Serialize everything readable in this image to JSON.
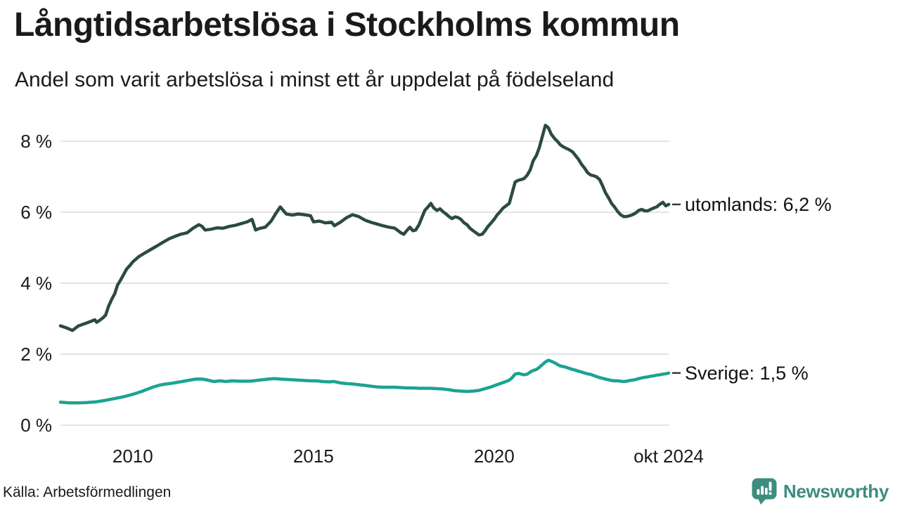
{
  "header": {
    "title": "Långtidsarbetslösa i Stockholms kommun",
    "subtitle": "Andel som varit arbetslösa i minst ett år uppdelat på födelseland"
  },
  "footer": {
    "source": "Källa: Arbetsförmedlingen",
    "brand": "Newsworthy"
  },
  "icons": {
    "brand_logo": "bar-chart-speech-bubble-with-exclamation-icon"
  },
  "colors": {
    "utomlands_line": "#2c4b40",
    "sverige_line": "#1ba392",
    "grid": "#e4e4e4",
    "text": "#1a1a1a",
    "label_connector": "#3a3a3a",
    "brand_teal": "#3c8c80"
  },
  "chart_data": {
    "type": "line",
    "title": "Långtidsarbetslösa i Stockholms kommun",
    "subtitle": "Andel som varit arbetslösa i minst ett år uppdelat på födelseland",
    "grid": "horizontal-only",
    "legend_position": "end-labels-right",
    "x_axis": {
      "range": [
        2008,
        2024.83
      ],
      "ticks": [
        {
          "label": "2010",
          "year": 2010
        },
        {
          "label": "2015",
          "year": 2015
        },
        {
          "label": "2020",
          "year": 2020
        },
        {
          "label": "okt 2024",
          "year": 2024.83
        }
      ]
    },
    "y_axis": {
      "unit": "%",
      "range": [
        0,
        8.6
      ],
      "ticks": [
        {
          "label": "8 %",
          "value": 8
        },
        {
          "label": "6 %",
          "value": 6
        },
        {
          "label": "4 %",
          "value": 4
        },
        {
          "label": "2 %",
          "value": 2
        },
        {
          "label": "0 %",
          "value": 0
        }
      ]
    },
    "series": [
      {
        "name": "utomlands",
        "label": "utomlands: 6,2 %",
        "end_value": 6.2,
        "color": "#2c4b40",
        "points": [
          [
            2008.0,
            2.8
          ],
          [
            2008.17,
            2.74
          ],
          [
            2008.33,
            2.67
          ],
          [
            2008.5,
            2.8
          ],
          [
            2008.67,
            2.86
          ],
          [
            2008.83,
            2.92
          ],
          [
            2008.95,
            2.97
          ],
          [
            2009.0,
            2.9
          ],
          [
            2009.08,
            2.95
          ],
          [
            2009.17,
            3.02
          ],
          [
            2009.25,
            3.1
          ],
          [
            2009.33,
            3.35
          ],
          [
            2009.42,
            3.55
          ],
          [
            2009.5,
            3.7
          ],
          [
            2009.58,
            3.95
          ],
          [
            2009.67,
            4.1
          ],
          [
            2009.75,
            4.25
          ],
          [
            2009.83,
            4.4
          ],
          [
            2009.92,
            4.5
          ],
          [
            2010.0,
            4.6
          ],
          [
            2010.17,
            4.75
          ],
          [
            2010.33,
            4.85
          ],
          [
            2010.5,
            4.95
          ],
          [
            2010.67,
            5.05
          ],
          [
            2010.83,
            5.15
          ],
          [
            2011.0,
            5.25
          ],
          [
            2011.17,
            5.32
          ],
          [
            2011.33,
            5.38
          ],
          [
            2011.5,
            5.42
          ],
          [
            2011.67,
            5.55
          ],
          [
            2011.83,
            5.65
          ],
          [
            2011.92,
            5.6
          ],
          [
            2012.0,
            5.5
          ],
          [
            2012.17,
            5.52
          ],
          [
            2012.33,
            5.56
          ],
          [
            2012.5,
            5.55
          ],
          [
            2012.67,
            5.6
          ],
          [
            2012.83,
            5.63
          ],
          [
            2013.0,
            5.68
          ],
          [
            2013.17,
            5.73
          ],
          [
            2013.3,
            5.8
          ],
          [
            2013.4,
            5.5
          ],
          [
            2013.5,
            5.54
          ],
          [
            2013.67,
            5.58
          ],
          [
            2013.83,
            5.75
          ],
          [
            2013.95,
            5.95
          ],
          [
            2014.08,
            6.15
          ],
          [
            2014.25,
            5.95
          ],
          [
            2014.42,
            5.92
          ],
          [
            2014.58,
            5.95
          ],
          [
            2014.75,
            5.93
          ],
          [
            2014.92,
            5.9
          ],
          [
            2015.0,
            5.73
          ],
          [
            2015.17,
            5.75
          ],
          [
            2015.33,
            5.7
          ],
          [
            2015.5,
            5.72
          ],
          [
            2015.58,
            5.62
          ],
          [
            2015.75,
            5.72
          ],
          [
            2015.92,
            5.85
          ],
          [
            2016.08,
            5.93
          ],
          [
            2016.25,
            5.88
          ],
          [
            2016.42,
            5.78
          ],
          [
            2016.58,
            5.72
          ],
          [
            2016.75,
            5.67
          ],
          [
            2016.92,
            5.62
          ],
          [
            2017.08,
            5.58
          ],
          [
            2017.25,
            5.55
          ],
          [
            2017.42,
            5.42
          ],
          [
            2017.5,
            5.38
          ],
          [
            2017.58,
            5.48
          ],
          [
            2017.67,
            5.58
          ],
          [
            2017.75,
            5.48
          ],
          [
            2017.83,
            5.5
          ],
          [
            2017.92,
            5.65
          ],
          [
            2018.0,
            5.85
          ],
          [
            2018.08,
            6.05
          ],
          [
            2018.17,
            6.15
          ],
          [
            2018.25,
            6.25
          ],
          [
            2018.33,
            6.12
          ],
          [
            2018.42,
            6.05
          ],
          [
            2018.5,
            6.1
          ],
          [
            2018.58,
            6.02
          ],
          [
            2018.67,
            5.95
          ],
          [
            2018.75,
            5.88
          ],
          [
            2018.83,
            5.82
          ],
          [
            2018.92,
            5.87
          ],
          [
            2019.0,
            5.85
          ],
          [
            2019.08,
            5.8
          ],
          [
            2019.17,
            5.7
          ],
          [
            2019.25,
            5.65
          ],
          [
            2019.33,
            5.55
          ],
          [
            2019.42,
            5.48
          ],
          [
            2019.5,
            5.42
          ],
          [
            2019.58,
            5.36
          ],
          [
            2019.67,
            5.38
          ],
          [
            2019.75,
            5.48
          ],
          [
            2019.83,
            5.6
          ],
          [
            2019.92,
            5.7
          ],
          [
            2020.0,
            5.8
          ],
          [
            2020.08,
            5.92
          ],
          [
            2020.17,
            6.02
          ],
          [
            2020.25,
            6.12
          ],
          [
            2020.33,
            6.18
          ],
          [
            2020.42,
            6.25
          ],
          [
            2020.5,
            6.55
          ],
          [
            2020.58,
            6.85
          ],
          [
            2020.67,
            6.9
          ],
          [
            2020.75,
            6.92
          ],
          [
            2020.83,
            6.95
          ],
          [
            2020.92,
            7.05
          ],
          [
            2021.0,
            7.2
          ],
          [
            2021.08,
            7.45
          ],
          [
            2021.17,
            7.6
          ],
          [
            2021.25,
            7.82
          ],
          [
            2021.33,
            8.12
          ],
          [
            2021.42,
            8.45
          ],
          [
            2021.5,
            8.38
          ],
          [
            2021.58,
            8.2
          ],
          [
            2021.67,
            8.08
          ],
          [
            2021.75,
            8.0
          ],
          [
            2021.83,
            7.9
          ],
          [
            2021.92,
            7.84
          ],
          [
            2022.0,
            7.8
          ],
          [
            2022.08,
            7.76
          ],
          [
            2022.17,
            7.7
          ],
          [
            2022.25,
            7.6
          ],
          [
            2022.33,
            7.5
          ],
          [
            2022.42,
            7.35
          ],
          [
            2022.5,
            7.25
          ],
          [
            2022.58,
            7.12
          ],
          [
            2022.67,
            7.05
          ],
          [
            2022.75,
            7.03
          ],
          [
            2022.83,
            7.0
          ],
          [
            2022.92,
            6.92
          ],
          [
            2023.0,
            6.75
          ],
          [
            2023.08,
            6.55
          ],
          [
            2023.17,
            6.4
          ],
          [
            2023.25,
            6.25
          ],
          [
            2023.33,
            6.15
          ],
          [
            2023.42,
            6.02
          ],
          [
            2023.5,
            5.93
          ],
          [
            2023.58,
            5.88
          ],
          [
            2023.67,
            5.88
          ],
          [
            2023.75,
            5.9
          ],
          [
            2023.83,
            5.93
          ],
          [
            2023.92,
            5.98
          ],
          [
            2024.0,
            6.05
          ],
          [
            2024.08,
            6.08
          ],
          [
            2024.17,
            6.04
          ],
          [
            2024.25,
            6.04
          ],
          [
            2024.33,
            6.08
          ],
          [
            2024.42,
            6.12
          ],
          [
            2024.5,
            6.15
          ],
          [
            2024.58,
            6.22
          ],
          [
            2024.67,
            6.28
          ],
          [
            2024.75,
            6.18
          ],
          [
            2024.83,
            6.22
          ]
        ]
      },
      {
        "name": "sverige",
        "label": "Sverige: 1,5 %",
        "end_value": 1.5,
        "color": "#1ba392",
        "points": [
          [
            2008.0,
            0.65
          ],
          [
            2008.25,
            0.63
          ],
          [
            2008.5,
            0.63
          ],
          [
            2008.75,
            0.64
          ],
          [
            2009.0,
            0.66
          ],
          [
            2009.25,
            0.7
          ],
          [
            2009.5,
            0.75
          ],
          [
            2009.75,
            0.8
          ],
          [
            2010.0,
            0.87
          ],
          [
            2010.25,
            0.95
          ],
          [
            2010.42,
            1.02
          ],
          [
            2010.58,
            1.08
          ],
          [
            2010.75,
            1.13
          ],
          [
            2010.92,
            1.16
          ],
          [
            2011.08,
            1.18
          ],
          [
            2011.25,
            1.21
          ],
          [
            2011.42,
            1.24
          ],
          [
            2011.58,
            1.27
          ],
          [
            2011.75,
            1.3
          ],
          [
            2011.92,
            1.3
          ],
          [
            2012.08,
            1.27
          ],
          [
            2012.25,
            1.23
          ],
          [
            2012.42,
            1.25
          ],
          [
            2012.58,
            1.23
          ],
          [
            2012.75,
            1.25
          ],
          [
            2012.92,
            1.24
          ],
          [
            2013.08,
            1.24
          ],
          [
            2013.25,
            1.24
          ],
          [
            2013.42,
            1.26
          ],
          [
            2013.58,
            1.28
          ],
          [
            2013.75,
            1.3
          ],
          [
            2013.92,
            1.31
          ],
          [
            2014.08,
            1.3
          ],
          [
            2014.25,
            1.29
          ],
          [
            2014.42,
            1.28
          ],
          [
            2014.58,
            1.27
          ],
          [
            2014.75,
            1.26
          ],
          [
            2014.92,
            1.25
          ],
          [
            2015.08,
            1.25
          ],
          [
            2015.25,
            1.23
          ],
          [
            2015.42,
            1.22
          ],
          [
            2015.58,
            1.23
          ],
          [
            2015.75,
            1.19
          ],
          [
            2015.92,
            1.17
          ],
          [
            2016.08,
            1.16
          ],
          [
            2016.25,
            1.14
          ],
          [
            2016.42,
            1.12
          ],
          [
            2016.58,
            1.1
          ],
          [
            2016.75,
            1.08
          ],
          [
            2016.92,
            1.07
          ],
          [
            2017.08,
            1.07
          ],
          [
            2017.25,
            1.07
          ],
          [
            2017.42,
            1.06
          ],
          [
            2017.58,
            1.05
          ],
          [
            2017.75,
            1.05
          ],
          [
            2017.92,
            1.04
          ],
          [
            2018.08,
            1.04
          ],
          [
            2018.25,
            1.04
          ],
          [
            2018.42,
            1.03
          ],
          [
            2018.58,
            1.02
          ],
          [
            2018.75,
            1.0
          ],
          [
            2018.92,
            0.97
          ],
          [
            2019.08,
            0.96
          ],
          [
            2019.25,
            0.95
          ],
          [
            2019.42,
            0.96
          ],
          [
            2019.58,
            0.98
          ],
          [
            2019.75,
            1.03
          ],
          [
            2019.92,
            1.08
          ],
          [
            2020.08,
            1.14
          ],
          [
            2020.25,
            1.2
          ],
          [
            2020.42,
            1.27
          ],
          [
            2020.5,
            1.34
          ],
          [
            2020.58,
            1.44
          ],
          [
            2020.67,
            1.46
          ],
          [
            2020.75,
            1.44
          ],
          [
            2020.83,
            1.42
          ],
          [
            2020.92,
            1.44
          ],
          [
            2021.0,
            1.5
          ],
          [
            2021.08,
            1.54
          ],
          [
            2021.17,
            1.57
          ],
          [
            2021.25,
            1.63
          ],
          [
            2021.33,
            1.7
          ],
          [
            2021.42,
            1.78
          ],
          [
            2021.5,
            1.83
          ],
          [
            2021.58,
            1.8
          ],
          [
            2021.67,
            1.76
          ],
          [
            2021.75,
            1.71
          ],
          [
            2021.83,
            1.67
          ],
          [
            2021.92,
            1.65
          ],
          [
            2022.0,
            1.63
          ],
          [
            2022.08,
            1.6
          ],
          [
            2022.17,
            1.57
          ],
          [
            2022.25,
            1.55
          ],
          [
            2022.33,
            1.52
          ],
          [
            2022.42,
            1.5
          ],
          [
            2022.5,
            1.47
          ],
          [
            2022.58,
            1.45
          ],
          [
            2022.67,
            1.43
          ],
          [
            2022.75,
            1.4
          ],
          [
            2022.83,
            1.37
          ],
          [
            2022.92,
            1.34
          ],
          [
            2023.0,
            1.32
          ],
          [
            2023.08,
            1.3
          ],
          [
            2023.17,
            1.28
          ],
          [
            2023.25,
            1.26
          ],
          [
            2023.33,
            1.25
          ],
          [
            2023.42,
            1.25
          ],
          [
            2023.5,
            1.24
          ],
          [
            2023.58,
            1.23
          ],
          [
            2023.67,
            1.24
          ],
          [
            2023.75,
            1.26
          ],
          [
            2023.83,
            1.27
          ],
          [
            2023.92,
            1.29
          ],
          [
            2024.0,
            1.31
          ],
          [
            2024.08,
            1.33
          ],
          [
            2024.17,
            1.35
          ],
          [
            2024.25,
            1.36
          ],
          [
            2024.33,
            1.38
          ],
          [
            2024.42,
            1.39
          ],
          [
            2024.5,
            1.41
          ],
          [
            2024.58,
            1.42
          ],
          [
            2024.67,
            1.44
          ],
          [
            2024.75,
            1.45
          ],
          [
            2024.83,
            1.47
          ]
        ]
      }
    ]
  }
}
